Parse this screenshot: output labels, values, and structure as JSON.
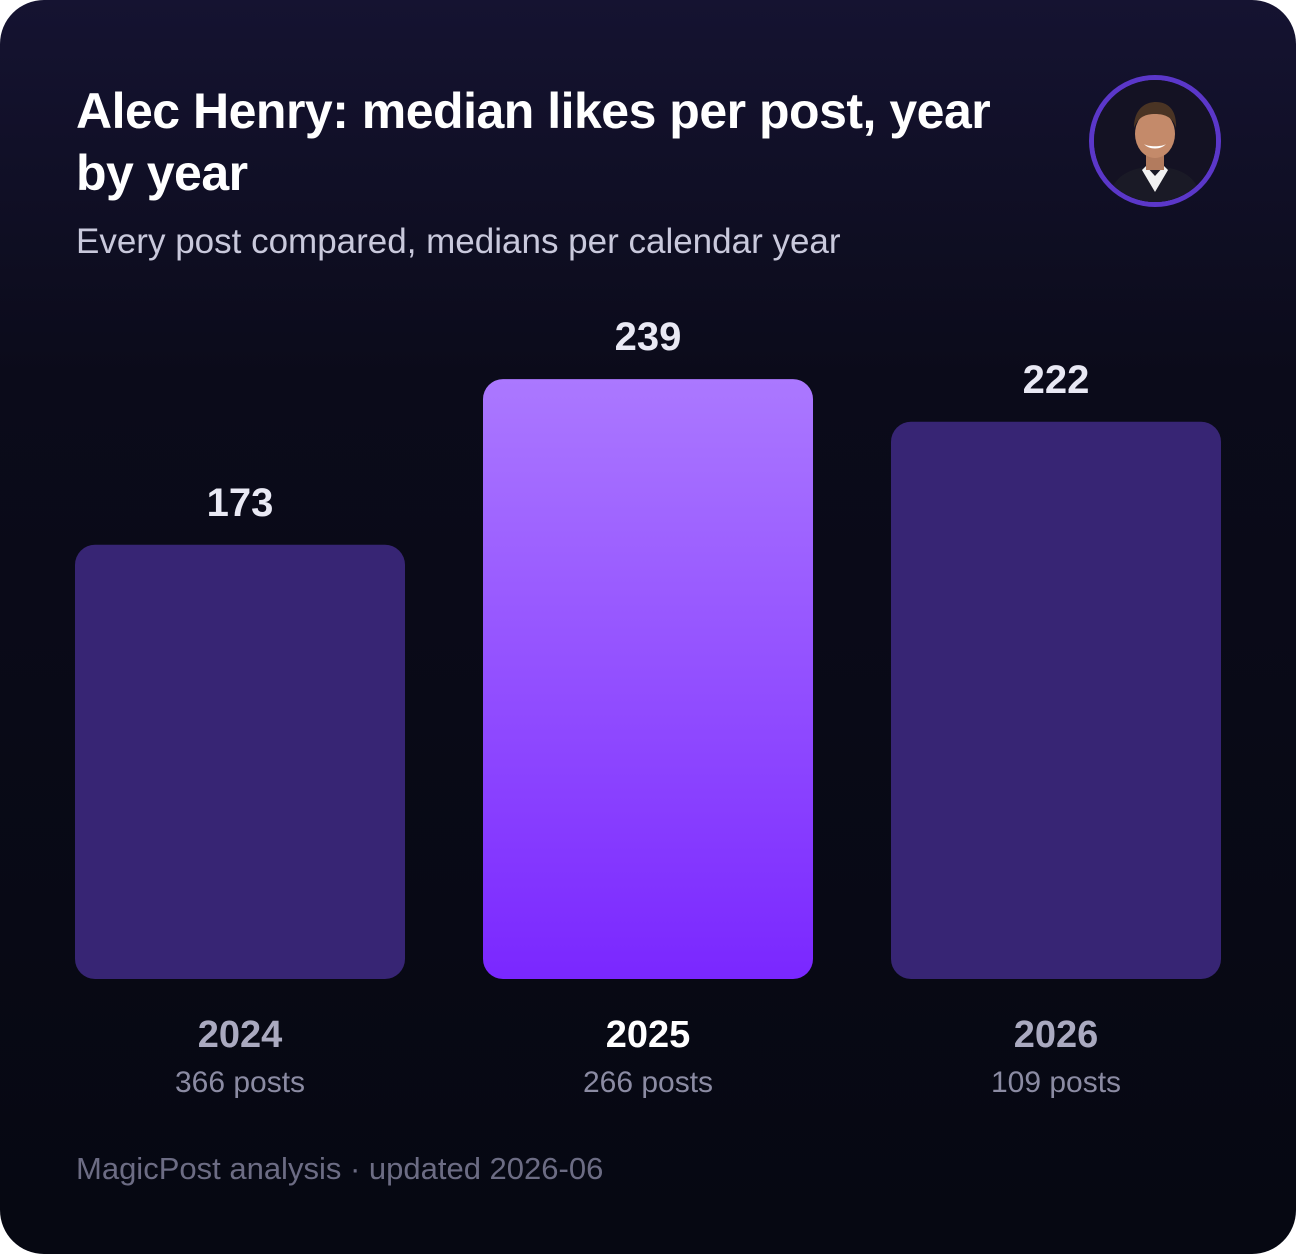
{
  "header": {
    "title": "Alec Henry: median likes per post, year by year",
    "subtitle": "Every post compared, medians per calendar year",
    "avatar_icon": "profile-photo"
  },
  "colors": {
    "bar": "#372574",
    "highlight_top": "#ab78ff",
    "highlight_bottom": "#7a27ff",
    "value_label": "#e9e9f4",
    "year_label": "#aaaac0",
    "year_label_highlight": "#ffffff",
    "posts_label": "#8b8ba3"
  },
  "chart_data": {
    "type": "bar",
    "categories": [
      "2024",
      "2025",
      "2026"
    ],
    "values": [
      173,
      239,
      222
    ],
    "value_labels": [
      "173",
      "239",
      "222"
    ],
    "post_counts": [
      "366 posts",
      "266 posts",
      "109 posts"
    ],
    "highlighted_category": "2025",
    "ylim": [
      0,
      239
    ],
    "grid": false,
    "legend": "none",
    "title": "Alec Henry: median likes per post, year by year",
    "subtitle": "Every post compared, medians per calendar year"
  },
  "footer": {
    "text": "MagicPost analysis · updated 2026-06"
  }
}
